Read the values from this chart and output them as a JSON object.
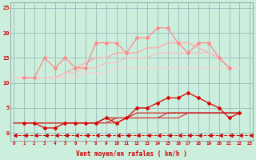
{
  "bg_color": "#cceedd",
  "grid_color": "#99bbbb",
  "x_label": "Vent moyen/en rafales ( km/h )",
  "x_ticks": [
    0,
    1,
    2,
    3,
    4,
    5,
    6,
    7,
    8,
    9,
    10,
    11,
    12,
    13,
    14,
    15,
    16,
    17,
    18,
    19,
    20,
    21,
    22,
    23
  ],
  "ylim": [
    -1.5,
    26
  ],
  "xlim": [
    -0.3,
    23.3
  ],
  "yticks": [
    0,
    5,
    10,
    15,
    20,
    25
  ],
  "series": [
    {
      "y": [
        11,
        11,
        15,
        13,
        15,
        13,
        13,
        18,
        18,
        18,
        16,
        19,
        19,
        21,
        21,
        18,
        16,
        18,
        18,
        15,
        13
      ],
      "color": "#ff8888",
      "marker": "D",
      "markersize": 2.0,
      "linewidth": 0.9,
      "x_start": 1
    },
    {
      "y": [
        11,
        11,
        11,
        11,
        11,
        12,
        13,
        14,
        15,
        15,
        16,
        16,
        16,
        17,
        17,
        18,
        18,
        18,
        17,
        16,
        15,
        13
      ],
      "color": "#ffaaaa",
      "marker": null,
      "markersize": 0,
      "linewidth": 1.0,
      "x_start": 0
    },
    {
      "y": [
        11,
        11,
        11,
        11,
        11,
        12,
        12,
        13,
        13,
        14,
        14,
        15,
        15,
        15,
        16,
        16,
        16,
        16,
        16,
        16,
        15,
        13
      ],
      "color": "#ffbbbb",
      "marker": null,
      "markersize": 0,
      "linewidth": 0.9,
      "x_start": 0
    },
    {
      "y": [
        11,
        11,
        11,
        11,
        11,
        11,
        11,
        12,
        12,
        12,
        13,
        13,
        13,
        13,
        13,
        13,
        13,
        13,
        13,
        13,
        13,
        13,
        13
      ],
      "color": "#ffcccc",
      "marker": null,
      "markersize": 0,
      "linewidth": 0.9,
      "x_start": 0
    },
    {
      "y": [
        2,
        2,
        1,
        1,
        2,
        2,
        2,
        2,
        3,
        2,
        3,
        5,
        5,
        6,
        7,
        7,
        8,
        7,
        6,
        5,
        3,
        4
      ],
      "color": "#dd0000",
      "marker": "D",
      "markersize": 2.0,
      "linewidth": 0.9,
      "x_start": 1
    },
    {
      "y": [
        2,
        2,
        2,
        2,
        2,
        2,
        2,
        2,
        2,
        3,
        3,
        3,
        4,
        4,
        4,
        4,
        4,
        4,
        4,
        4,
        4,
        4,
        4
      ],
      "color": "#cc1111",
      "marker": null,
      "markersize": 0,
      "linewidth": 0.8,
      "x_start": 0
    },
    {
      "y": [
        2,
        2,
        2,
        2,
        2,
        2,
        2,
        2,
        2,
        2,
        3,
        3,
        3,
        3,
        3,
        4,
        4,
        4,
        4,
        4,
        4,
        4,
        4
      ],
      "color": "#cc2222",
      "marker": null,
      "markersize": 0,
      "linewidth": 0.8,
      "x_start": 0
    },
    {
      "y": [
        2,
        2,
        2,
        2,
        2,
        2,
        2,
        2,
        2,
        2,
        2,
        3,
        3,
        3,
        3,
        3,
        3,
        4,
        4,
        4,
        4,
        4,
        4
      ],
      "color": "#cc3333",
      "marker": null,
      "markersize": 0,
      "linewidth": 0.8,
      "x_start": 0
    },
    {
      "y": [
        -0.5,
        -0.5,
        -0.5,
        -0.5,
        -0.5,
        -0.5,
        -0.5,
        -0.5,
        -0.5,
        -0.5,
        -0.5,
        -0.5,
        -0.5,
        -0.5,
        -0.5,
        -0.5,
        -0.5,
        -0.5,
        -0.5,
        -0.5,
        -0.5,
        -0.5,
        -0.5,
        -0.5
      ],
      "color": "#cc0000",
      "marker": 4,
      "markersize": 3.5,
      "linewidth": 0.7,
      "x_start": 0,
      "linestyle": "--"
    }
  ]
}
